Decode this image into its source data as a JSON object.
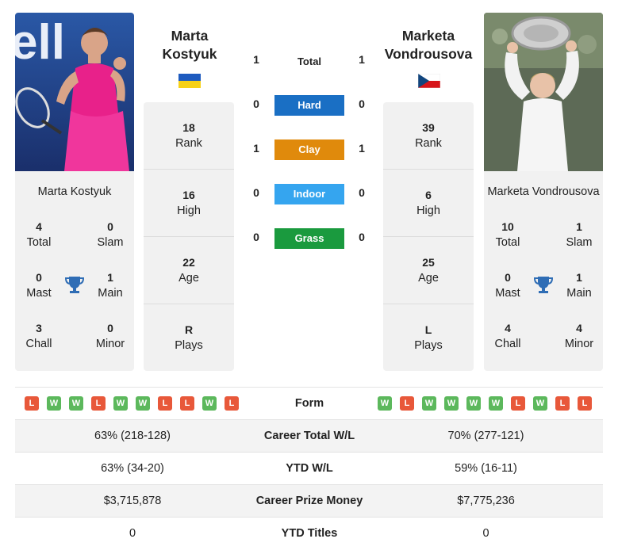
{
  "left": {
    "header_name_line1": "Marta",
    "header_name_line2": "Kostyuk",
    "card_name": "Marta Kostyuk",
    "total": "4",
    "total_label": "Total",
    "slam": "0",
    "slam_label": "Slam",
    "mast": "0",
    "mast_label": "Mast",
    "main": "1",
    "main_label": "Main",
    "chall": "3",
    "chall_label": "Chall",
    "minor": "0",
    "minor_label": "Minor",
    "rank": "18",
    "rank_label": "Rank",
    "high": "16",
    "high_label": "High",
    "age": "22",
    "age_label": "Age",
    "plays": "R",
    "plays_label": "Plays",
    "flag": "ukraine-flag-icon",
    "form": [
      "L",
      "W",
      "W",
      "L",
      "W",
      "W",
      "L",
      "L",
      "W",
      "L"
    ],
    "career_wl": "63% (218-128)",
    "ytd_wl": "63% (34-20)",
    "prize": "$3,715,878",
    "ytd_titles": "0"
  },
  "right": {
    "header_name_line1": "Marketa",
    "header_name_line2": "Vondrousova",
    "card_name": "Marketa Vondrousova",
    "total": "10",
    "total_label": "Total",
    "slam": "1",
    "slam_label": "Slam",
    "mast": "0",
    "mast_label": "Mast",
    "main": "1",
    "main_label": "Main",
    "chall": "4",
    "chall_label": "Chall",
    "minor": "4",
    "minor_label": "Minor",
    "rank": "39",
    "rank_label": "Rank",
    "high": "6",
    "high_label": "High",
    "age": "25",
    "age_label": "Age",
    "plays": "L",
    "plays_label": "Plays",
    "flag": "czech-flag-icon",
    "form": [
      "W",
      "L",
      "W",
      "W",
      "W",
      "W",
      "L",
      "W",
      "L",
      "L"
    ],
    "career_wl": "70% (277-121)",
    "ytd_wl": "59% (16-11)",
    "prize": "$7,775,236",
    "ytd_titles": "0"
  },
  "h2h": {
    "total_label": "Total",
    "total_left": "1",
    "total_right": "1",
    "surfaces": [
      {
        "label": "Hard",
        "left": "0",
        "right": "0",
        "color": "#1a6fc4"
      },
      {
        "label": "Clay",
        "left": "1",
        "right": "1",
        "color": "#e08a0c"
      },
      {
        "label": "Indoor",
        "left": "0",
        "right": "0",
        "color": "#35a5ef"
      },
      {
        "label": "Grass",
        "left": "0",
        "right": "0",
        "color": "#1a9a3e"
      }
    ]
  },
  "table": {
    "form_label": "Form",
    "career_wl_label": "Career Total W/L",
    "ytd_wl_label": "YTD W/L",
    "prize_label": "Career Prize Money",
    "ytd_titles_label": "YTD Titles"
  },
  "colors": {
    "win": "#5cb85c",
    "loss": "#e8583a",
    "trophy": "#2f6db5",
    "card_bg": "#f1f1f1"
  }
}
